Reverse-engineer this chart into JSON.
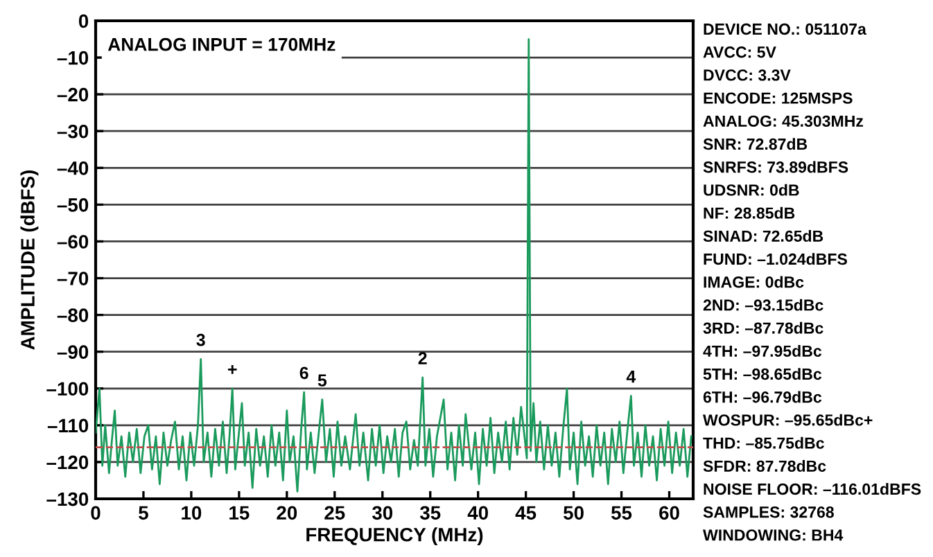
{
  "chart_data": {
    "type": "line",
    "xlabel": "FREQUENCY (MHz)",
    "ylabel": "AMPLITUDE (dBFS)",
    "xlim": [
      0,
      62.5
    ],
    "xticks": [
      0,
      5,
      10,
      15,
      20,
      25,
      30,
      35,
      40,
      45,
      50,
      55,
      60
    ],
    "ylim": [
      -130,
      0
    ],
    "yticks": [
      0,
      {
        "value": -10,
        "label": "–10"
      },
      {
        "value": -20,
        "label": "–20"
      },
      {
        "value": -30,
        "label": "–30"
      },
      {
        "value": -40,
        "label": "–40"
      },
      {
        "value": -50,
        "label": "–50"
      },
      {
        "value": -60,
        "label": "–60"
      },
      {
        "value": -70,
        "label": "–70"
      },
      {
        "value": -80,
        "label": "–80"
      },
      {
        "value": -90,
        "label": "–90"
      },
      {
        "value": -100,
        "label": "–100"
      },
      {
        "value": -110,
        "label": "–110"
      },
      {
        "value": -120,
        "label": "–120"
      },
      {
        "value": -130,
        "label": "–130"
      }
    ],
    "grid": "y",
    "legend": false,
    "marker": "none",
    "line_style": "solid",
    "series": [
      {
        "color": "#1a9a5c",
        "x": [
          0,
          0.4,
          0.7,
          1.0,
          1.4,
          1.7,
          2.0,
          2.3,
          2.7,
          3.1,
          3.5,
          3.9,
          4.3,
          4.7,
          5.1,
          5.5,
          5.9,
          6.3,
          6.7,
          7.1,
          7.5,
          7.9,
          8.3,
          8.7,
          9.1,
          9.5,
          9.9,
          10.3,
          10.7,
          11.0,
          11.3,
          11.7,
          12.1,
          12.5,
          12.9,
          13.3,
          13.7,
          14.0,
          14.3,
          14.6,
          15.3,
          15.6,
          16.0,
          16.4,
          16.8,
          17.2,
          17.6,
          18.0,
          18.4,
          18.8,
          19.2,
          19.6,
          20.0,
          20.3,
          20.7,
          21.1,
          21.5,
          21.8,
          22.1,
          22.5,
          22.9,
          23.3,
          23.7,
          24.1,
          24.5,
          24.9,
          25.3,
          25.7,
          26.1,
          26.6,
          27.2,
          27.6,
          28.0,
          28.5,
          28.9,
          29.3,
          29.7,
          30.1,
          30.5,
          30.9,
          31.3,
          31.7,
          32.1,
          32.5,
          32.9,
          33.3,
          33.7,
          34.2,
          34.5,
          34.9,
          35.3,
          35.7,
          36.4,
          36.8,
          37.2,
          37.6,
          38.0,
          38.4,
          38.7,
          39.3,
          39.7,
          40.1,
          40.5,
          40.9,
          41.3,
          41.7,
          42.1,
          42.5,
          42.9,
          43.3,
          43.7,
          44.1,
          44.5,
          44.9,
          45.1,
          45.3,
          45.5,
          45.8,
          46.1,
          46.5,
          46.9,
          47.3,
          47.7,
          48.1,
          48.5,
          48.9,
          49.3,
          49.6,
          50.0,
          50.4,
          50.8,
          51.2,
          51.6,
          52.0,
          52.4,
          52.8,
          53.2,
          53.6,
          54.0,
          54.4,
          54.8,
          55.2,
          55.6,
          56.0,
          56.3,
          56.7,
          57.1,
          57.5,
          57.9,
          58.3,
          58.7,
          59.1,
          59.5,
          59.9,
          60.3,
          60.7,
          61.1,
          61.5,
          61.9,
          62.3
        ],
        "values": [
          -112,
          -100,
          -121,
          -110,
          -123,
          -114,
          -106,
          -121,
          -113,
          -124,
          -112,
          -120,
          -111,
          -123,
          -113,
          -110,
          -122,
          -113,
          -126,
          -112,
          -121,
          -114,
          -109,
          -122,
          -113,
          -125,
          -112,
          -121,
          -110,
          -92,
          -120,
          -112,
          -124,
          -111,
          -121,
          -109,
          -123,
          -113,
          -100,
          -122,
          -104,
          -121,
          -112,
          -127,
          -111,
          -121,
          -113,
          -124,
          -110,
          -121,
          -112,
          -125,
          -106,
          -120,
          -113,
          -128,
          -111,
          -101,
          -122,
          -112,
          -123,
          -113,
          -103,
          -120,
          -111,
          -124,
          -109,
          -121,
          -113,
          -122,
          -107,
          -121,
          -112,
          -125,
          -111,
          -121,
          -110,
          -123,
          -113,
          -120,
          -111,
          -124,
          -112,
          -109,
          -122,
          -114,
          -121,
          -97,
          -121,
          -111,
          -124,
          -113,
          -103,
          -122,
          -112,
          -125,
          -110,
          -121,
          -107,
          -122,
          -112,
          -126,
          -111,
          -121,
          -108,
          -123,
          -112,
          -120,
          -109,
          -122,
          -108,
          -118,
          -105,
          -114,
          -119,
          -5,
          -117,
          -104,
          -120,
          -109,
          -122,
          -110,
          -121,
          -112,
          -124,
          -111,
          -100,
          -122,
          -112,
          -126,
          -109,
          -121,
          -113,
          -124,
          -110,
          -121,
          -112,
          -126,
          -111,
          -120,
          -109,
          -123,
          -112,
          -102,
          -121,
          -112,
          -124,
          -110,
          -121,
          -113,
          -125,
          -111,
          -121,
          -109,
          -123,
          -112,
          -121,
          -111,
          -124,
          -113
        ]
      }
    ],
    "ref_lines": [
      {
        "axis": "y",
        "value": -116,
        "color": "#c0504d",
        "line_style": "dashed"
      }
    ],
    "annotations": [
      {
        "text": "3",
        "x": 11.0,
        "y": -92
      },
      {
        "text": "+",
        "x": 14.3,
        "y": -100
      },
      {
        "text": "6",
        "x": 21.8,
        "y": -101
      },
      {
        "text": "5",
        "x": 23.7,
        "y": -103
      },
      {
        "text": "2",
        "x": 34.2,
        "y": -97
      },
      {
        "text": "4",
        "x": 56.0,
        "y": -102
      },
      "ANALOG INPUT = 170MHz",
      "DEVICE NO.: 051107a",
      "AVCC: 5V",
      "DVCC: 3.3V",
      "ENCODE: 125MSPS",
      "ANALOG: 45.303MHz",
      "SNR: 72.87dB",
      "SNRFS: 73.89dBFS",
      "UDSNR: 0dB",
      "NF: 28.85dB",
      "SINAD: 72.65dB",
      "FUND: –1.024dBFS",
      "IMAGE: 0dBc",
      "2ND: –93.15dBc",
      "3RD: –87.78dBc",
      "4TH: –97.95dBc",
      "5TH: –98.65dBc",
      "6TH: –96.79dBc",
      "WOSPUR: –95.65dBc+",
      "THD: –85.75dBc",
      "SFDR: 87.78dBc",
      "NOISE FLOOR: –116.01dBFS",
      "SAMPLES: 32768",
      "WINDOWING: BH4"
    ]
  }
}
